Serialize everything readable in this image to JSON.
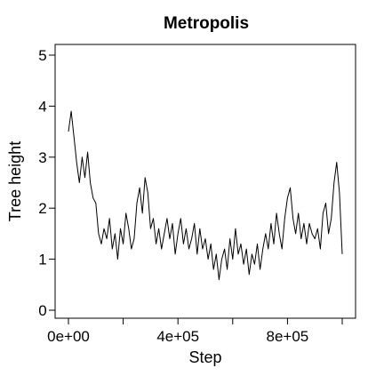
{
  "chart_data": {
    "type": "line",
    "title": "Metropolis",
    "xlabel": "Step",
    "ylabel": "Tree height",
    "xlim": [
      0,
      1000000
    ],
    "ylim": [
      0,
      5
    ],
    "x_ticks": [
      0,
      200000,
      400000,
      600000,
      800000,
      1000000
    ],
    "x_tick_labels": [
      "0e+00",
      "",
      "4e+05",
      "",
      "8e+05",
      ""
    ],
    "y_ticks": [
      0,
      1,
      2,
      3,
      4,
      5
    ],
    "y_tick_labels": [
      "0",
      "1",
      "2",
      "3",
      "4",
      "5"
    ],
    "grid": false,
    "line_color": "#000000",
    "series": [
      {
        "x": [
          0,
          10000,
          20000,
          30000,
          40000,
          50000,
          60000,
          70000,
          80000,
          90000,
          100000,
          110000,
          120000,
          130000,
          140000,
          150000,
          160000,
          170000,
          180000,
          190000,
          200000,
          210000,
          220000,
          230000,
          240000,
          250000,
          260000,
          270000,
          280000,
          290000,
          300000,
          310000,
          320000,
          330000,
          340000,
          350000,
          360000,
          370000,
          380000,
          390000,
          400000,
          410000,
          420000,
          430000,
          440000,
          450000,
          460000,
          470000,
          480000,
          490000,
          500000,
          510000,
          520000,
          530000,
          540000,
          550000,
          560000,
          570000,
          580000,
          590000,
          600000,
          610000,
          620000,
          630000,
          640000,
          650000,
          660000,
          670000,
          680000,
          690000,
          700000,
          710000,
          720000,
          730000,
          740000,
          750000,
          760000,
          770000,
          780000,
          790000,
          800000,
          810000,
          820000,
          830000,
          840000,
          850000,
          860000,
          870000,
          880000,
          890000,
          900000,
          910000,
          920000,
          930000,
          940000,
          950000,
          960000,
          970000,
          980000,
          990000,
          1000000
        ],
        "values": [
          3.5,
          3.9,
          3.4,
          2.9,
          2.5,
          3.0,
          2.6,
          3.1,
          2.5,
          2.2,
          2.1,
          1.5,
          1.3,
          1.6,
          1.4,
          1.8,
          1.2,
          1.5,
          1.0,
          1.6,
          1.3,
          1.9,
          1.6,
          1.2,
          1.4,
          2.1,
          2.4,
          1.9,
          2.6,
          2.3,
          1.6,
          1.8,
          1.3,
          1.6,
          1.2,
          1.5,
          1.8,
          1.4,
          1.7,
          1.1,
          1.5,
          1.8,
          1.3,
          1.6,
          1.2,
          1.4,
          1.7,
          1.1,
          1.6,
          1.2,
          1.4,
          1.0,
          1.3,
          0.8,
          1.1,
          0.6,
          1.0,
          1.2,
          0.8,
          1.4,
          1.0,
          1.6,
          1.1,
          1.3,
          0.9,
          1.2,
          0.7,
          1.1,
          0.9,
          1.3,
          0.8,
          1.2,
          1.5,
          1.2,
          1.7,
          1.3,
          1.9,
          1.5,
          1.2,
          1.8,
          2.2,
          2.4,
          1.8,
          1.5,
          1.9,
          1.4,
          1.7,
          1.3,
          1.7,
          1.5,
          1.4,
          1.6,
          1.2,
          1.9,
          2.1,
          1.5,
          1.8,
          2.5,
          2.9,
          2.3,
          1.1
        ]
      }
    ]
  }
}
